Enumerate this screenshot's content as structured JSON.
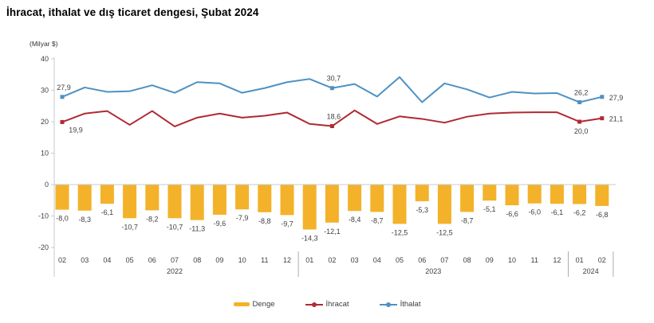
{
  "title": "İhracat, ithalat ve dış ticaret dengesi, Şubat 2024",
  "unit_label": "(Milyar $)",
  "colors": {
    "bar": "#F3B229",
    "export_line": "#AF2A32",
    "import_line": "#4E91C3",
    "axis": "#C6CBD0",
    "separator": "#A9AFB5",
    "text": "#3F3F3F",
    "background": "#FFFFFF"
  },
  "legend": {
    "items": [
      {
        "label": "Denge",
        "color": "#F3B229",
        "swatch": "bar"
      },
      {
        "label": "İhracat",
        "color": "#AF2A32",
        "swatch": "line-marker"
      },
      {
        "label": "İthalat",
        "color": "#4E91C3",
        "swatch": "line-marker"
      }
    ]
  },
  "chart_data": {
    "type": "bar",
    "subtype": "combo-bar-and-lines",
    "title": "İhracat, ithalat ve dış ticaret dengesi, Şubat 2024",
    "ylabel": "(Milyar $)",
    "ylim": [
      -20,
      40
    ],
    "yticks": [
      40,
      30,
      20,
      10,
      0,
      -10,
      -20
    ],
    "grid": false,
    "legend_position": "bottom",
    "categories": [
      "02",
      "03",
      "04",
      "05",
      "06",
      "07",
      "08",
      "09",
      "10",
      "11",
      "12",
      "01",
      "02",
      "03",
      "04",
      "05",
      "06",
      "07",
      "08",
      "09",
      "10",
      "11",
      "12",
      "01",
      "02"
    ],
    "year_groups": [
      {
        "label": "2022",
        "start": 0,
        "end": 10
      },
      {
        "label": "2023",
        "start": 11,
        "end": 22
      },
      {
        "label": "2024",
        "start": 23,
        "end": 24
      }
    ],
    "bar_series": {
      "name": "Denge",
      "color": "#F3B229",
      "values": [
        -8.0,
        -8.3,
        -6.1,
        -10.7,
        -8.2,
        -10.7,
        -11.3,
        -9.6,
        -7.9,
        -8.8,
        -9.7,
        -14.3,
        -12.1,
        -8.4,
        -8.7,
        -12.5,
        -5.3,
        -12.5,
        -8.7,
        -5.1,
        -6.6,
        -6.0,
        -6.1,
        -6.2,
        -6.8
      ]
    },
    "line_series": [
      {
        "name": "İhracat",
        "color": "#AF2A32",
        "values": [
          19.9,
          22.6,
          23.4,
          19.0,
          23.4,
          18.5,
          21.3,
          22.6,
          21.3,
          21.9,
          22.9,
          19.3,
          18.6,
          23.6,
          19.3,
          21.7,
          20.9,
          19.7,
          21.6,
          22.6,
          22.9,
          23.0,
          23.0,
          20.0,
          21.1
        ],
        "labeled_points": [
          {
            "index": 0,
            "label": "19,9",
            "position": "below-right"
          },
          {
            "index": 12,
            "label": "18,6",
            "position": "above"
          },
          {
            "index": 23,
            "label": "20,0",
            "position": "below"
          },
          {
            "index": 24,
            "label": "21,1",
            "position": "right"
          }
        ]
      },
      {
        "name": "İthalat",
        "color": "#4E91C3",
        "values": [
          27.9,
          30.9,
          29.5,
          29.7,
          31.6,
          29.2,
          32.6,
          32.2,
          29.2,
          30.7,
          32.6,
          33.6,
          30.7,
          32.0,
          28.0,
          34.2,
          26.2,
          32.2,
          30.3,
          27.7,
          29.5,
          29.0,
          29.1,
          26.2,
          27.9
        ],
        "labeled_points": [
          {
            "index": 0,
            "label": "27,9",
            "position": "above"
          },
          {
            "index": 12,
            "label": "30,7",
            "position": "above"
          },
          {
            "index": 23,
            "label": "26,2",
            "position": "above"
          },
          {
            "index": 24,
            "label": "27,9",
            "position": "right"
          }
        ]
      }
    ]
  }
}
